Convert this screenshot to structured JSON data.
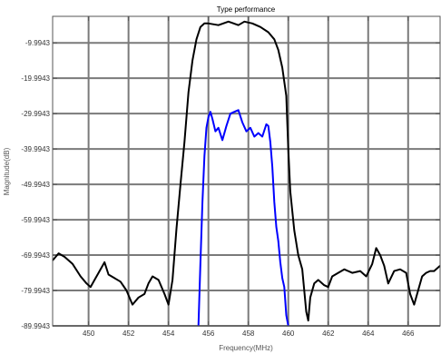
{
  "chart_data": {
    "type": "line",
    "title": "Type performance",
    "xlabel": "Frequency(MHz)",
    "ylabel": "Magnitude(dB)",
    "xlim": [
      448.2,
      467.6
    ],
    "ylim": [
      -89.9943,
      -2.5
    ],
    "grid": true,
    "x_ticks": [
      450,
      452,
      454,
      456,
      458,
      460,
      462,
      464,
      466
    ],
    "y_ticks": [
      -9.9943,
      -19.9943,
      -29.9943,
      -39.9943,
      -49.9943,
      -59.9943,
      -69.9943,
      -79.9943,
      -89.9943
    ],
    "series": [
      {
        "color": "#000000",
        "x": [
          448.2,
          448.5,
          448.8,
          449.2,
          449.6,
          449.9,
          450.1,
          450.3,
          450.5,
          450.8,
          451.0,
          451.3,
          451.6,
          451.9,
          452.2,
          452.5,
          452.8,
          453.0,
          453.2,
          453.5,
          453.8,
          454.0,
          454.2,
          454.4,
          454.6,
          454.8,
          455.0,
          455.2,
          455.4,
          455.6,
          455.8,
          456.0,
          456.5,
          457.0,
          457.5,
          457.8,
          458.2,
          458.6,
          459.0,
          459.3,
          459.5,
          459.7,
          459.9,
          460.0,
          460.1,
          460.3,
          460.5,
          460.7,
          460.8,
          460.9,
          461.0,
          461.1,
          461.3,
          461.5,
          461.8,
          462.0,
          462.2,
          462.5,
          462.8,
          463.2,
          463.6,
          463.9,
          464.2,
          464.4,
          464.6,
          464.8,
          465.0,
          465.3,
          465.6,
          465.9,
          466.1,
          466.3,
          466.5,
          466.7,
          466.9,
          467.1,
          467.3,
          467.6
        ],
        "values": [
          -71.5,
          -69.5,
          -70.5,
          -72.5,
          -76.0,
          -78.0,
          -79.0,
          -77.0,
          -75.0,
          -72.0,
          -75.5,
          -76.5,
          -77.5,
          -80.0,
          -84.0,
          -82.0,
          -81.0,
          -78.0,
          -76.0,
          -77.0,
          -81.0,
          -84.0,
          -77.0,
          -62.5,
          -50.0,
          -38.0,
          -24.0,
          -15.0,
          -9.0,
          -5.5,
          -4.5,
          -4.5,
          -5.0,
          -4.0,
          -5.0,
          -4.0,
          -4.5,
          -5.5,
          -7.0,
          -9.0,
          -12.0,
          -17.0,
          -25.0,
          -40.0,
          -52.0,
          -63.0,
          -70.0,
          -74.0,
          -80.0,
          -86.0,
          -88.5,
          -82.0,
          -78.0,
          -77.0,
          -78.5,
          -79.0,
          -76.0,
          -75.0,
          -74.0,
          -75.0,
          -74.5,
          -76.0,
          -72.5,
          -68.0,
          -70.0,
          -73.0,
          -78.0,
          -74.5,
          -74.0,
          -75.0,
          -81.0,
          -84.0,
          -80.0,
          -76.0,
          -75.0,
          -74.5,
          -74.5,
          -73.0
        ]
      },
      {
        "color": "#0000ff",
        "x": [
          455.5,
          455.6,
          455.7,
          455.8,
          455.9,
          456.0,
          456.1,
          456.2,
          456.35,
          456.5,
          456.7,
          456.9,
          457.1,
          457.3,
          457.5,
          457.7,
          457.9,
          458.1,
          458.3,
          458.5,
          458.7,
          458.9,
          459.0,
          459.1,
          459.2,
          459.3,
          459.4,
          459.5,
          459.6,
          459.7,
          459.8,
          459.85,
          459.9,
          460.0
        ],
        "values": [
          -89.9943,
          -72.0,
          -55.0,
          -42.0,
          -34.0,
          -31.0,
          -29.5,
          -31.5,
          -35.0,
          -34.0,
          -37.5,
          -33.5,
          -30.0,
          -29.5,
          -29.0,
          -32.5,
          -35.0,
          -34.0,
          -36.5,
          -35.5,
          -36.5,
          -33.0,
          -33.5,
          -38.0,
          -45.0,
          -55.0,
          -62.0,
          -66.0,
          -72.0,
          -76.5,
          -79.0,
          -83.0,
          -87.0,
          -89.9943
        ]
      }
    ]
  }
}
